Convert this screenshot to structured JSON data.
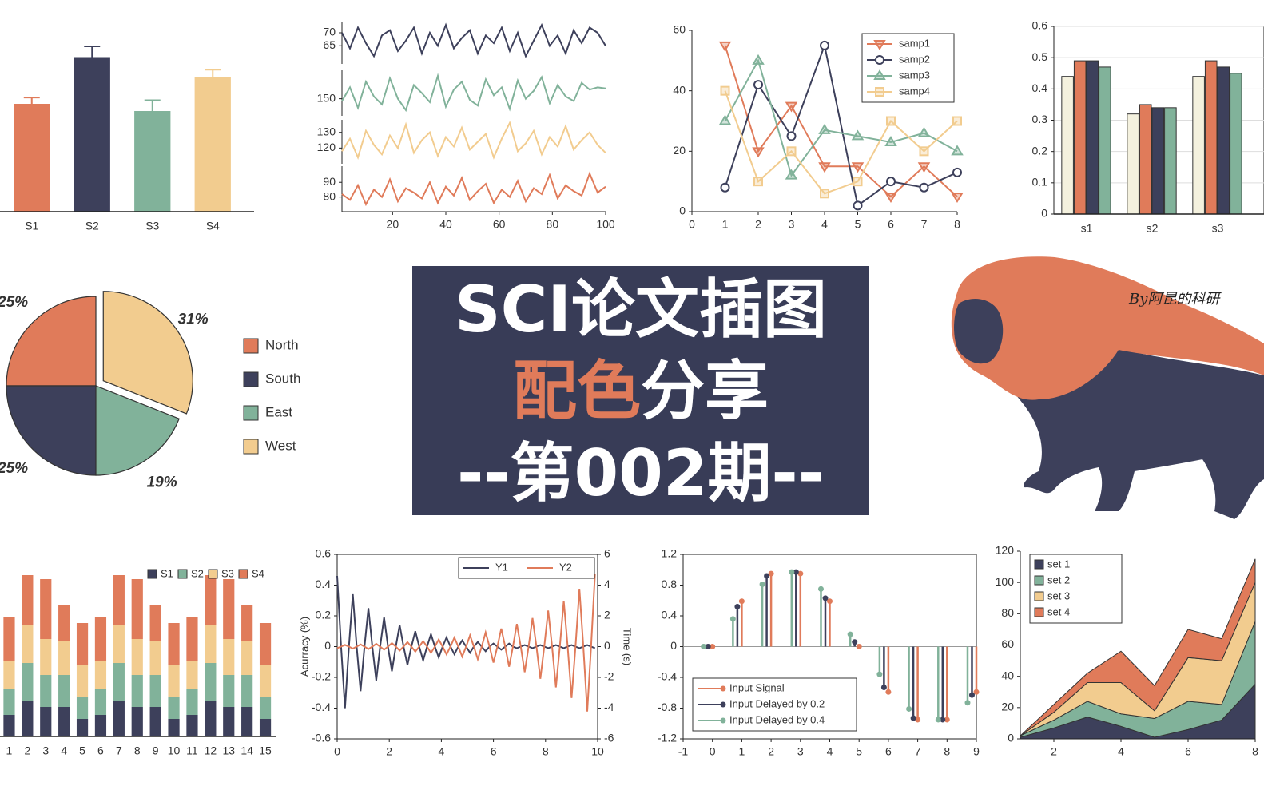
{
  "chart_data": [
    {
      "type": "bar",
      "categories": [
        "S1",
        "S2",
        "S3",
        "S4"
      ],
      "values": [
        0.6,
        0.86,
        0.56,
        0.75
      ],
      "errors": [
        0.035,
        0.06,
        0.06,
        0.04
      ],
      "colors": [
        "#e07b5a",
        "#3d405b",
        "#81b29a",
        "#f2cc8f"
      ],
      "ylim": [
        0,
        1
      ]
    },
    {
      "type": "line",
      "x": [
        1,
        4,
        7,
        10,
        13,
        16,
        19,
        22,
        25,
        28,
        31,
        34,
        37,
        40,
        43,
        46,
        49,
        52,
        55,
        58,
        61,
        64,
        67,
        70,
        73,
        76,
        79,
        82,
        85,
        88,
        91,
        94,
        97,
        100
      ],
      "xlim": [
        1,
        100
      ],
      "xticks": [
        20,
        40,
        60,
        80,
        100
      ],
      "panels": [
        {
          "color": "#3d405b",
          "ylim": [
            58,
            74
          ],
          "yticks": [
            65,
            70
          ],
          "values": [
            70,
            64,
            72,
            66,
            61,
            69,
            71,
            63,
            67,
            72,
            62,
            70,
            65,
            73,
            64,
            68,
            71,
            62,
            69,
            66,
            72,
            63,
            70,
            61,
            67,
            73,
            65,
            69,
            62,
            71,
            66,
            72,
            70,
            65
          ]
        },
        {
          "color": "#81b29a",
          "ylim": [
            135,
            175
          ],
          "yticks": [
            150
          ],
          "values": [
            148,
            160,
            142,
            165,
            152,
            145,
            168,
            150,
            140,
            162,
            155,
            147,
            170,
            143,
            158,
            165,
            149,
            144,
            167,
            153,
            160,
            141,
            166,
            150,
            157,
            169,
            146,
            162,
            152,
            148,
            164,
            158,
            160,
            159
          ]
        },
        {
          "color": "#f2cc8f",
          "ylim": [
            110,
            138
          ],
          "yticks": [
            120,
            130
          ],
          "values": [
            118,
            126,
            114,
            131,
            122,
            116,
            128,
            120,
            135,
            117,
            125,
            130,
            115,
            127,
            121,
            133,
            119,
            124,
            129,
            114,
            126,
            136,
            118,
            123,
            131,
            116,
            127,
            121,
            134,
            119,
            125,
            130,
            122,
            117
          ]
        },
        {
          "color": "#e07b5a",
          "ylim": [
            70,
            101
          ],
          "yticks": [
            80,
            90
          ],
          "values": [
            82,
            78,
            88,
            75,
            85,
            80,
            92,
            77,
            86,
            83,
            79,
            90,
            76,
            87,
            81,
            93,
            78,
            84,
            89,
            76,
            85,
            80,
            91,
            77,
            86,
            82,
            95,
            79,
            88,
            84,
            81,
            96,
            83,
            87
          ]
        }
      ]
    },
    {
      "type": "line",
      "x": [
        1,
        2,
        3,
        4,
        5,
        6,
        7,
        8
      ],
      "xlim": [
        0,
        8
      ],
      "xticks": [
        0,
        1,
        2,
        3,
        4,
        5,
        6,
        7,
        8
      ],
      "ylim": [
        0,
        60
      ],
      "yticks": [
        0,
        20,
        40,
        60
      ],
      "legend": "upper right",
      "series": [
        {
          "name": "samp1",
          "color": "#e07b5a",
          "marker": "v",
          "values": [
            55,
            20,
            35,
            15,
            15,
            5,
            15,
            5
          ]
        },
        {
          "name": "samp2",
          "color": "#3d405b",
          "marker": "o",
          "values": [
            8,
            42,
            25,
            55,
            2,
            10,
            8,
            13
          ]
        },
        {
          "name": "samp3",
          "color": "#81b29a",
          "marker": "^",
          "values": [
            30,
            50,
            12,
            27,
            25,
            23,
            26,
            20
          ]
        },
        {
          "name": "samp4",
          "color": "#f2cc8f",
          "marker": "s",
          "values": [
            40,
            10,
            20,
            6,
            10,
            30,
            20,
            30
          ]
        }
      ]
    },
    {
      "type": "bar",
      "categories": [
        "s1",
        "s2",
        "s3"
      ],
      "ylim": [
        0,
        0.6
      ],
      "yticks": [
        0,
        0.1,
        0.2,
        0.3,
        0.4,
        0.5,
        0.6
      ],
      "grid": true,
      "series": [
        {
          "color": "#f4f1de",
          "values": [
            0.44,
            0.32,
            0.44
          ]
        },
        {
          "color": "#e07b5a",
          "values": [
            0.49,
            0.35,
            0.49
          ]
        },
        {
          "color": "#3d405b",
          "values": [
            0.49,
            0.34,
            0.47
          ]
        },
        {
          "color": "#81b29a",
          "values": [
            0.47,
            0.34,
            0.45
          ]
        }
      ]
    },
    {
      "type": "pie",
      "categories": [
        "North",
        "South",
        "East",
        "West"
      ],
      "values": [
        25,
        25,
        19,
        31
      ],
      "value_labels": [
        "25%",
        "25%",
        "19%",
        "31%"
      ],
      "colors": [
        "#e07b5a",
        "#3d405b",
        "#81b29a",
        "#f2cc8f"
      ],
      "explode": [
        0,
        0,
        0,
        0.1
      ]
    },
    {
      "type": "bar",
      "stacked": true,
      "categories": [
        "1",
        "2",
        "3",
        "4",
        "5",
        "6",
        "7",
        "8",
        "9",
        "10",
        "11",
        "12",
        "13",
        "14",
        "15"
      ],
      "ylim": [
        0,
        220
      ],
      "legend": "upper right",
      "legend_ncol": 4,
      "legend_frame": false,
      "series": [
        {
          "name": "S1",
          "color": "#3d405b",
          "values": [
            27,
            45,
            37,
            37,
            22,
            27,
            45,
            37,
            37,
            22,
            27,
            45,
            37,
            37,
            22
          ]
        },
        {
          "name": "S2",
          "color": "#81b29a",
          "values": [
            33,
            47,
            40,
            40,
            27,
            33,
            47,
            40,
            40,
            27,
            33,
            47,
            40,
            40,
            27
          ]
        },
        {
          "name": "S3",
          "color": "#f2cc8f",
          "values": [
            34,
            48,
            45,
            42,
            40,
            34,
            48,
            45,
            42,
            40,
            34,
            48,
            45,
            42,
            40
          ]
        },
        {
          "name": "S4",
          "color": "#e07b5a",
          "values": [
            56,
            62,
            75,
            46,
            53,
            56,
            62,
            75,
            46,
            53,
            56,
            62,
            75,
            46,
            53
          ]
        }
      ]
    },
    {
      "type": "line",
      "frame": true,
      "ylabel": "Acurracy (%)",
      "y2label": "Time (s)",
      "xlim": [
        0,
        10
      ],
      "xticks": [
        0,
        2,
        4,
        6,
        8,
        10
      ],
      "ylim": [
        -0.6,
        0.6
      ],
      "yticks": [
        -0.6,
        -0.4,
        -0.2,
        0,
        0.2,
        0.4,
        0.6
      ],
      "y2lim": [
        -6,
        6
      ],
      "y2ticks": [
        -6,
        -4,
        -2,
        0,
        2,
        4,
        6
      ],
      "legend": "upper right",
      "legend_ncol": 2,
      "x": [
        0,
        0.15,
        0.3,
        0.45,
        0.6,
        0.75,
        0.9,
        1.05,
        1.2,
        1.35,
        1.5,
        1.65,
        1.8,
        1.95,
        2.1,
        2.25,
        2.4,
        2.55,
        2.7,
        2.85,
        3,
        3.15,
        3.3,
        3.45,
        3.6,
        3.75,
        3.9,
        4.05,
        4.2,
        4.35,
        4.5,
        4.65,
        4.8,
        4.95,
        5.1,
        5.25,
        5.4,
        5.55,
        5.7,
        5.85,
        6,
        6.15,
        6.3,
        6.45,
        6.6,
        6.75,
        6.9,
        7.05,
        7.2,
        7.35,
        7.5,
        7.65,
        7.8,
        7.95,
        8.1,
        8.25,
        8.4,
        8.55,
        8.7,
        8.85,
        9,
        9.15,
        9.3,
        9.45,
        9.6,
        9.75,
        9.9
      ],
      "series": [
        {
          "name": "Y1",
          "color": "#3d405b",
          "values": [
            0.46,
            0,
            -0.4,
            0,
            0.34,
            0,
            -0.29,
            0,
            0.25,
            0,
            -0.22,
            0,
            0.19,
            0,
            -0.16,
            0,
            0.14,
            0,
            -0.12,
            0,
            0.1,
            0,
            -0.09,
            0,
            0.08,
            0,
            -0.07,
            0,
            0.06,
            0,
            -0.05,
            0,
            0.04,
            0,
            -0.04,
            0,
            0.03,
            0,
            -0.03,
            0,
            0.02,
            0,
            -0.02,
            0,
            0.02,
            0,
            -0.01,
            0,
            0.01,
            0,
            -0.01,
            0,
            0.01,
            0,
            -0.01,
            0,
            0.01,
            0,
            -0.01,
            0,
            0.01,
            0,
            -0.01,
            0,
            0.01,
            0,
            -0.01
          ]
        },
        {
          "name": "Y2",
          "color": "#e07b5a",
          "axis": "y2",
          "values": [
            -0.1,
            0,
            0.11,
            0,
            -0.13,
            0,
            0.14,
            0,
            -0.16,
            0,
            0.18,
            0,
            -0.2,
            0,
            0.23,
            0,
            -0.26,
            0,
            0.29,
            0,
            -0.32,
            0,
            0.36,
            0,
            -0.41,
            0,
            0.46,
            0,
            -0.51,
            0,
            0.58,
            0,
            -0.65,
            0,
            0.73,
            0,
            -0.82,
            0,
            0.92,
            0,
            -1.04,
            0,
            1.17,
            0,
            -1.31,
            0,
            1.47,
            0,
            -1.66,
            0,
            1.86,
            0,
            -2.09,
            0,
            2.35,
            0,
            -2.65,
            0,
            2.97,
            0,
            -3.34,
            0,
            3.76,
            0,
            -4.22,
            0,
            4.75
          ]
        }
      ]
    },
    {
      "type": "stem",
      "xlim": [
        -1,
        9
      ],
      "xticks": [
        -1,
        0,
        1,
        2,
        3,
        4,
        5,
        6,
        7,
        8,
        9
      ],
      "ylim": [
        -1.2,
        1.2
      ],
      "yticks": [
        -1.2,
        -0.8,
        -0.4,
        0,
        0.4,
        0.8,
        1.2
      ],
      "legend": "lower left",
      "series": [
        {
          "name": "Input Signal",
          "color": "#e07b5a",
          "x": [
            0,
            1,
            2,
            3,
            4,
            5,
            6,
            7,
            8,
            9
          ],
          "values": [
            0,
            0.59,
            0.95,
            0.95,
            0.59,
            0,
            -0.59,
            -0.95,
            -0.95,
            -0.59
          ]
        },
        {
          "name": "Input Delayed by 0.2",
          "color": "#3d405b",
          "x": [
            -0.15,
            0.85,
            1.85,
            2.85,
            3.85,
            4.85,
            5.85,
            6.85,
            7.85,
            8.85
          ],
          "values": [
            0,
            0.52,
            0.92,
            0.97,
            0.63,
            0.06,
            -0.53,
            -0.93,
            -0.95,
            -0.63
          ]
        },
        {
          "name": "Input Delayed by 0.4",
          "color": "#81b29a",
          "x": [
            -0.3,
            0.7,
            1.7,
            2.7,
            3.7,
            4.7,
            5.7,
            6.7,
            7.7,
            8.7
          ],
          "values": [
            0,
            0.36,
            0.81,
            0.97,
            0.75,
            0.16,
            -0.36,
            -0.81,
            -0.95,
            -0.73
          ]
        }
      ]
    },
    {
      "type": "area",
      "x": [
        1,
        2,
        3,
        4,
        5,
        6,
        7,
        8
      ],
      "xlim": [
        1,
        8
      ],
      "xticks": [
        2,
        4,
        6,
        8
      ],
      "ylim": [
        0,
        120
      ],
      "yticks": [
        0,
        20,
        40,
        60,
        80,
        100,
        120
      ],
      "legend": "upper left",
      "series": [
        {
          "name": "set 1",
          "color": "#3d405b",
          "values": [
            1,
            7,
            14,
            8,
            1,
            6,
            12,
            35
          ]
        },
        {
          "name": "set 2",
          "color": "#81b29a",
          "values": [
            1,
            5,
            10,
            8,
            12,
            18,
            10,
            40
          ]
        },
        {
          "name": "set 3",
          "color": "#f2cc8f",
          "values": [
            0,
            5,
            12,
            20,
            5,
            28,
            28,
            25
          ]
        },
        {
          "name": "set 4",
          "color": "#e07b5a",
          "values": [
            0,
            5,
            6,
            20,
            16,
            18,
            14,
            15
          ]
        }
      ]
    }
  ],
  "banner": {
    "line1": "SCI论文插图",
    "line2_highlight": "配色",
    "line2_rest": "分享",
    "line3": "--第002期--"
  },
  "watermark": "By阿昆的科研"
}
